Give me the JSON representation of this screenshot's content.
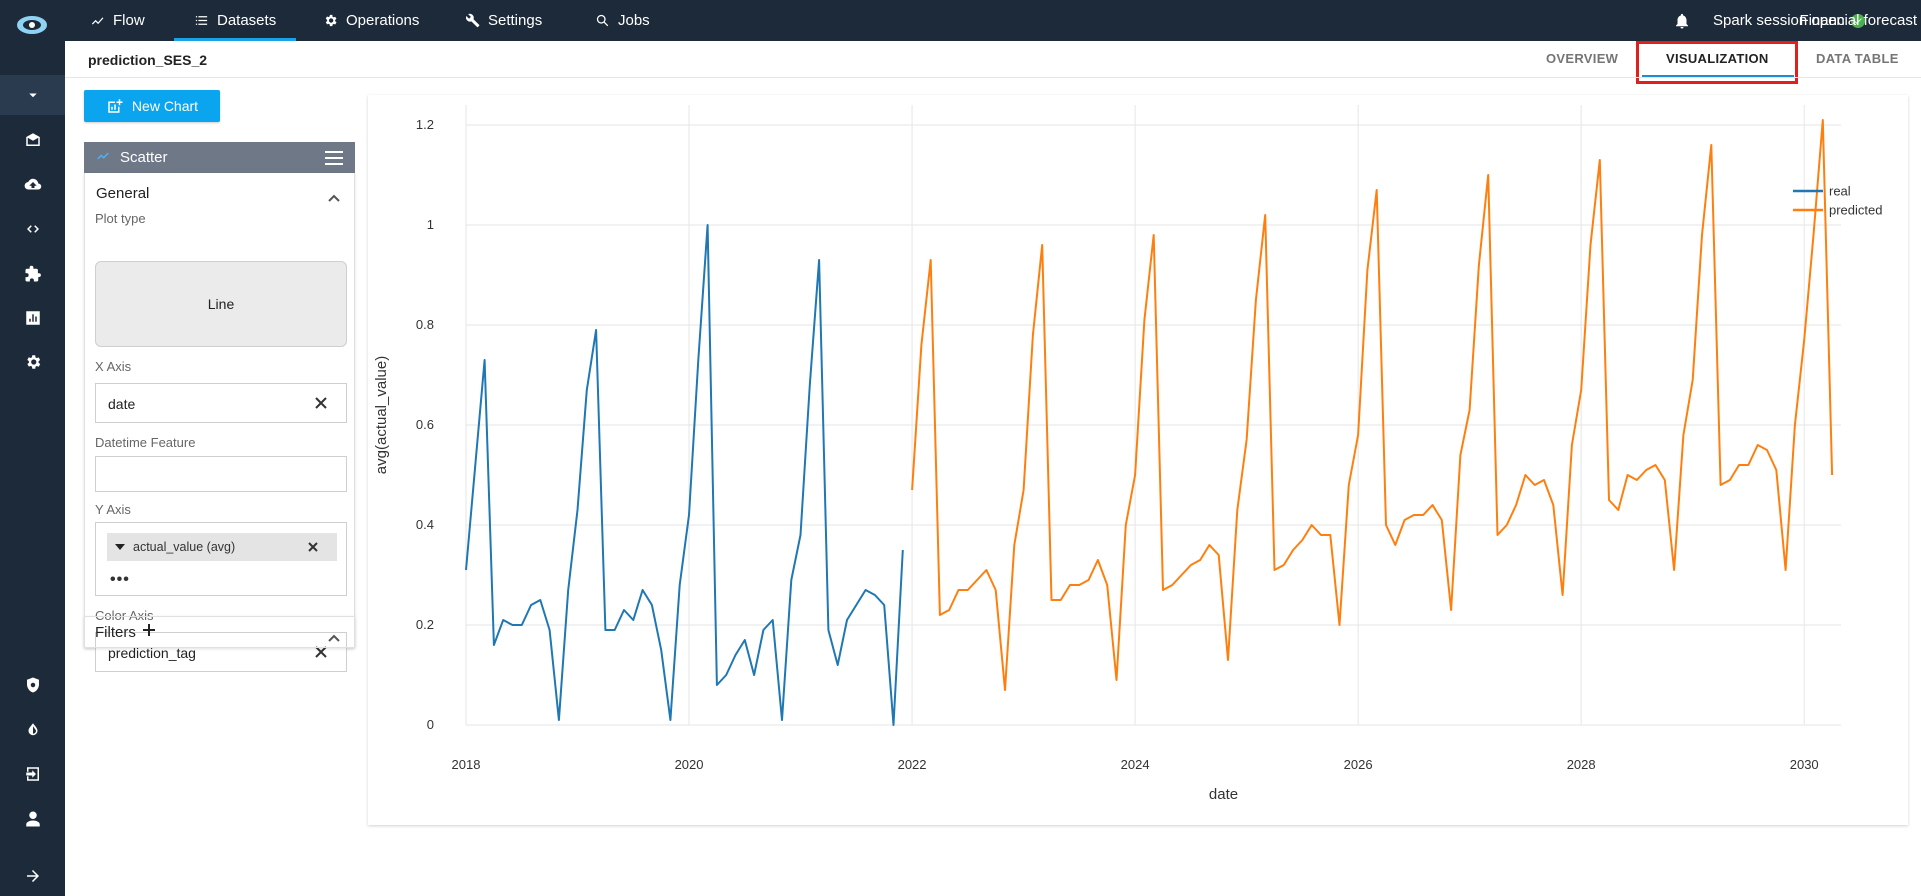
{
  "topbar": {
    "nav": [
      {
        "label": "Flow",
        "icon": "trend-icon"
      },
      {
        "label": "Datasets",
        "icon": "list-icon"
      },
      {
        "label": "Operations",
        "icon": "gear-icon"
      },
      {
        "label": "Settings",
        "icon": "wrench-icon"
      },
      {
        "label": "Jobs",
        "icon": "search-icon"
      }
    ],
    "active_nav": "Datasets",
    "spark_status": "Spark session open",
    "project": "Financial forecast"
  },
  "sidebar": {
    "items": [
      "chevron-down-icon",
      "inbox-icon",
      "upload-cloud-icon",
      "code-icon",
      "puzzle-icon",
      "chart-icon",
      "gear-icon",
      "shield-gear-icon",
      "contrast-icon",
      "login-icon",
      "user-icon",
      "arrow-right-icon"
    ]
  },
  "page": {
    "dataset_name": "prediction_SES_2",
    "tabs": [
      "OVERVIEW",
      "VISUALIZATION",
      "DATA TABLE"
    ],
    "active_tab": "VISUALIZATION"
  },
  "config": {
    "new_chart_label": "New Chart",
    "chart_kind": "Scatter",
    "section_general": "General",
    "plot_type_label": "Plot type",
    "plot_type_value": "Line",
    "x_axis_label": "X Axis",
    "x_axis_value": "date",
    "datetime_label": "Datetime Feature",
    "datetime_value": "",
    "y_axis_label": "Y Axis",
    "y_axis_value": "actual_value (avg)",
    "y_more": "•••",
    "color_axis_label": "Color Axis",
    "color_axis_value": "prediction_tag",
    "filters_label": "Filters"
  },
  "colors": {
    "accent": "#0aa5ee",
    "topbar": "#1d2a3a",
    "real": "#1f77b4",
    "predicted": "#ff7f0e",
    "highlight": "#e0201c"
  },
  "chart_data": {
    "type": "line",
    "xlabel": "date",
    "ylabel": "avg(actual_value)",
    "xlim": [
      2018.0,
      2030.33
    ],
    "ylim": [
      0,
      1.24
    ],
    "x_ticks": [
      "2018",
      "2020",
      "2022",
      "2024",
      "2026",
      "2028",
      "2030"
    ],
    "y_ticks": [
      "0",
      "0.2",
      "0.4",
      "0.6",
      "0.8",
      "1",
      "1.2"
    ],
    "grid": true,
    "legend_position": "top-right",
    "series": [
      {
        "name": "real",
        "color": "#1f77b4",
        "x_start": 2018.0,
        "step_months": 1,
        "values": [
          0.31,
          0.52,
          0.73,
          0.16,
          0.21,
          0.2,
          0.2,
          0.24,
          0.25,
          0.19,
          0.01,
          0.27,
          0.43,
          0.67,
          0.79,
          0.19,
          0.19,
          0.23,
          0.21,
          0.27,
          0.24,
          0.15,
          0.01,
          0.28,
          0.42,
          0.73,
          1.0,
          0.08,
          0.1,
          0.14,
          0.17,
          0.1,
          0.19,
          0.21,
          0.01,
          0.29,
          0.38,
          0.68,
          0.93,
          0.19,
          0.12,
          0.21,
          0.24,
          0.27,
          0.26,
          0.24,
          0.0,
          0.35
        ]
      },
      {
        "name": "predicted",
        "color": "#ff7f0e",
        "x_start": 2022.0,
        "step_months": 1,
        "values": [
          0.47,
          0.76,
          0.93,
          0.22,
          0.23,
          0.27,
          0.27,
          0.29,
          0.31,
          0.27,
          0.07,
          0.36,
          0.47,
          0.78,
          0.96,
          0.25,
          0.25,
          0.28,
          0.28,
          0.29,
          0.33,
          0.28,
          0.09,
          0.4,
          0.5,
          0.81,
          0.98,
          0.27,
          0.28,
          0.3,
          0.32,
          0.33,
          0.36,
          0.34,
          0.13,
          0.43,
          0.57,
          0.85,
          1.02,
          0.31,
          0.32,
          0.35,
          0.37,
          0.4,
          0.38,
          0.38,
          0.2,
          0.48,
          0.58,
          0.91,
          1.07,
          0.4,
          0.36,
          0.41,
          0.42,
          0.42,
          0.44,
          0.41,
          0.23,
          0.54,
          0.63,
          0.92,
          1.1,
          0.38,
          0.4,
          0.44,
          0.5,
          0.48,
          0.49,
          0.44,
          0.26,
          0.56,
          0.67,
          0.96,
          1.13,
          0.45,
          0.43,
          0.5,
          0.49,
          0.51,
          0.52,
          0.49,
          0.31,
          0.58,
          0.69,
          0.98,
          1.16,
          0.48,
          0.49,
          0.52,
          0.52,
          0.56,
          0.55,
          0.51,
          0.31,
          0.6,
          0.77,
          0.98,
          1.21,
          0.5
        ]
      }
    ]
  }
}
